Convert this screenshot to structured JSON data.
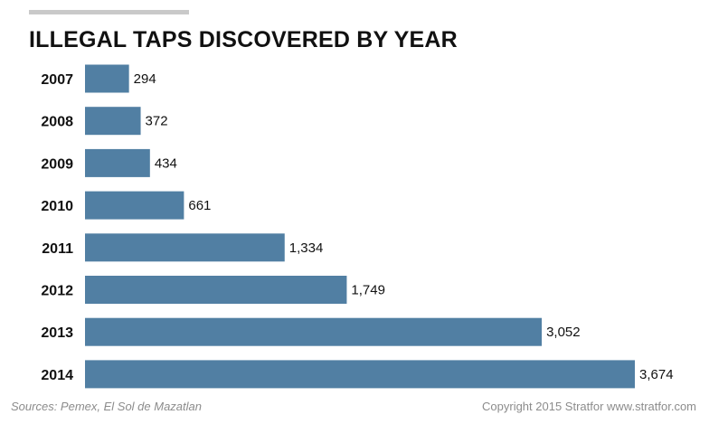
{
  "chart_data": {
    "type": "bar",
    "orientation": "horizontal",
    "title": "ILLEGAL TAPS DISCOVERED BY YEAR",
    "categories": [
      "2007",
      "2008",
      "2009",
      "2010",
      "2011",
      "2012",
      "2013",
      "2014"
    ],
    "values": [
      294,
      372,
      434,
      661,
      1334,
      1749,
      3052,
      3674
    ],
    "value_labels": [
      "294",
      "372",
      "434",
      "661",
      "1,334",
      "1,749",
      "3,052",
      "3,674"
    ],
    "xlabel": "",
    "ylabel": "",
    "xlim": [
      0,
      3674
    ],
    "grid": false,
    "legend": "none"
  },
  "colors": {
    "bar": "#517fa3",
    "text": "#111111",
    "muted": "#8c8c8c"
  },
  "footer": {
    "source": "Sources: Pemex, El Sol de Mazatlan",
    "copyright": "Copyright 2015 Stratfor www.stratfor.com"
  }
}
